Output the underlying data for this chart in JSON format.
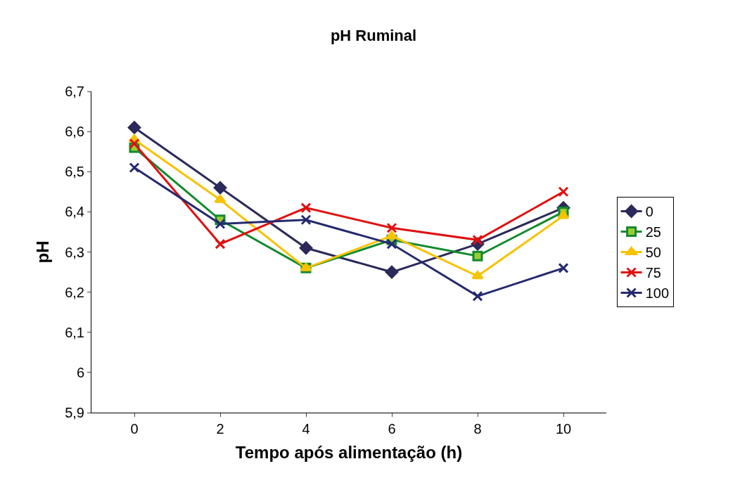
{
  "chart_data": {
    "type": "line",
    "title": "pH Ruminal",
    "xlabel": "Tempo após alimentação (h)",
    "ylabel": "pH",
    "categories": [
      "0",
      "2",
      "4",
      "6",
      "8",
      "10"
    ],
    "series": [
      {
        "name": "0",
        "color": "#2b2a5a",
        "marker": "diamond",
        "values": [
          6.61,
          6.46,
          6.31,
          6.25,
          6.32,
          6.41
        ]
      },
      {
        "name": "25",
        "color": "#138a2e",
        "marker": "square",
        "values": [
          6.56,
          6.38,
          6.26,
          6.33,
          6.29,
          6.4
        ]
      },
      {
        "name": "50",
        "color": "#f7c200",
        "marker": "triangle",
        "values": [
          6.58,
          6.43,
          6.26,
          6.34,
          6.24,
          6.39
        ]
      },
      {
        "name": "75",
        "color": "#e01010",
        "marker": "cross",
        "values": [
          6.57,
          6.32,
          6.41,
          6.36,
          6.33,
          6.45
        ]
      },
      {
        "name": "100",
        "color": "#242a6e",
        "marker": "cross",
        "values": [
          6.51,
          6.37,
          6.38,
          6.32,
          6.19,
          6.26
        ]
      }
    ],
    "ylim": [
      5.9,
      6.7
    ],
    "yticks": [
      {
        "value": 5.9,
        "label": "5,9"
      },
      6,
      {
        "value": 6.1,
        "label": "6,1"
      },
      {
        "value": 6.2,
        "label": "6,2"
      },
      {
        "value": 6.3,
        "label": "6,3"
      },
      {
        "value": 6.4,
        "label": "6,4"
      },
      {
        "value": 6.5,
        "label": "6,5"
      },
      {
        "value": 6.6,
        "label": "6,6"
      },
      {
        "value": 6.7,
        "label": "6,7"
      }
    ],
    "legend": "right",
    "line_style": "solid"
  }
}
